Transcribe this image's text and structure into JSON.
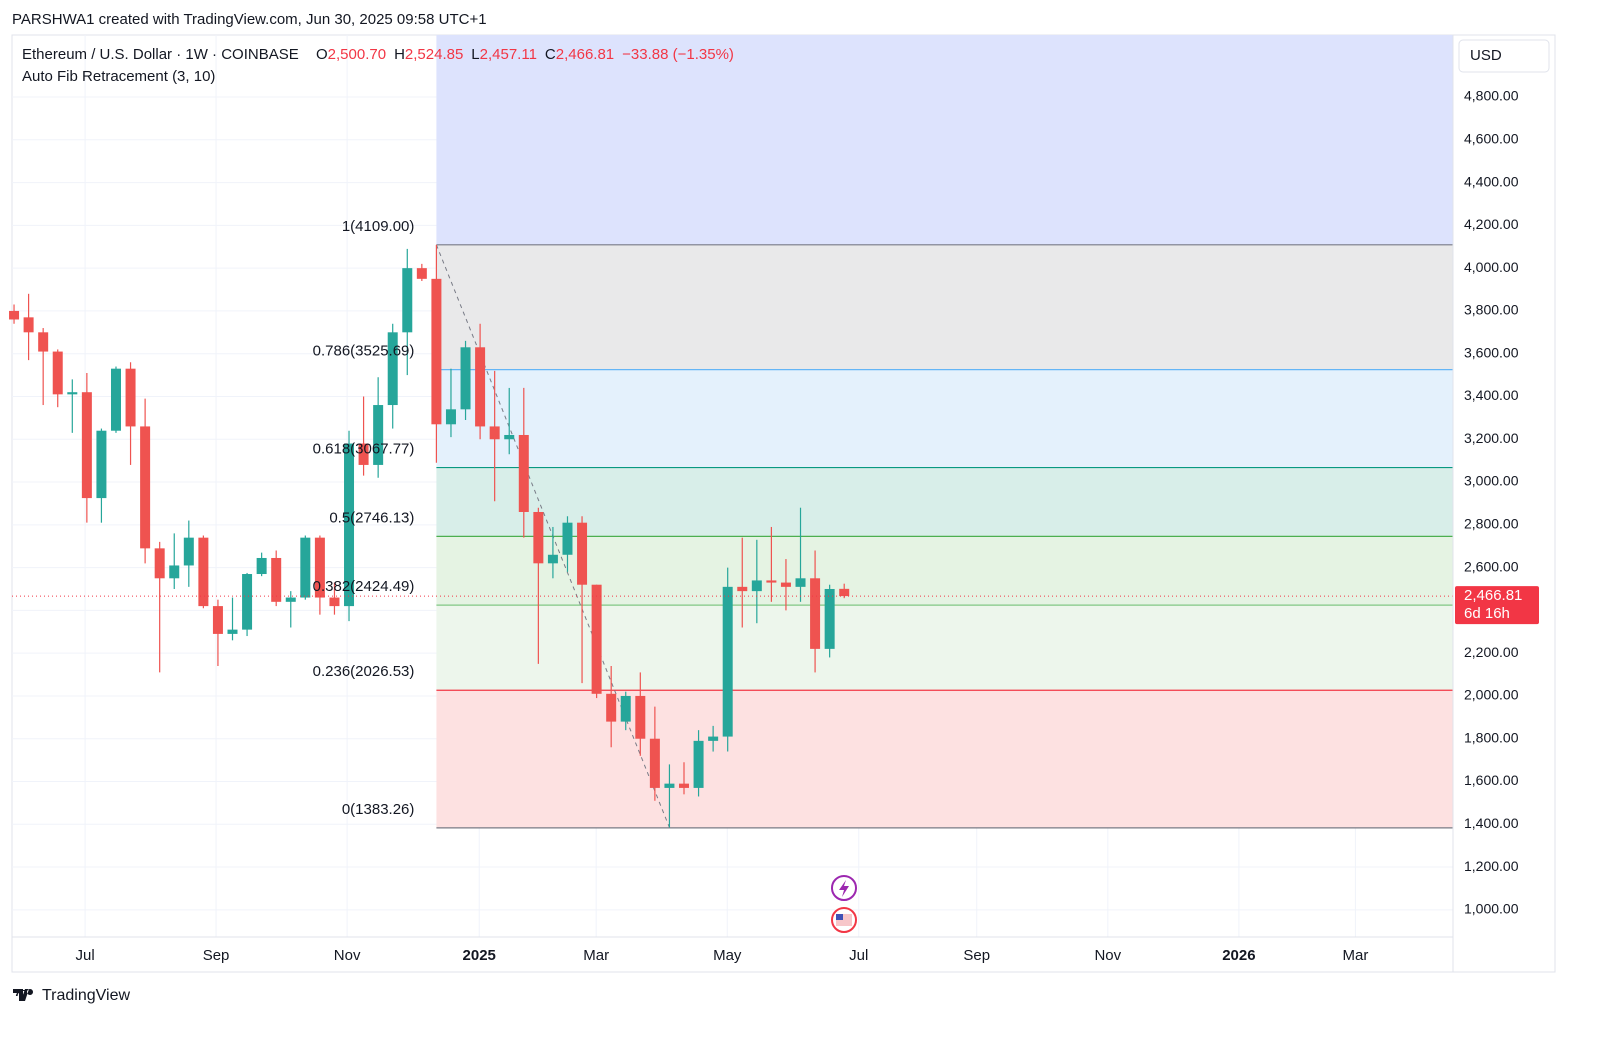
{
  "header": {
    "credit": "PARSHWA1 created with TradingView.com, Jun 30, 2025 09:58 UTC+1",
    "symbol": "Ethereum / U.S. Dollar · 1W · COINBASE",
    "ohlc": [
      {
        "key": "O",
        "text": "2,500.70"
      },
      {
        "key": "H",
        "text": "2,524.85"
      },
      {
        "key": "L",
        "text": "2,457.11"
      },
      {
        "key": "C",
        "text": "2,466.81"
      }
    ],
    "change": "−33.88 (−1.35%)",
    "indicator": "Auto Fib Retracement (3, 10)",
    "currency": "USD",
    "last_price": "2,466.81",
    "countdown": "6d 16h",
    "brand": "TradingView"
  },
  "chart_data": {
    "type": "candlestick",
    "up_color": "#26a69a",
    "down_color": "#ef5350",
    "candles": [
      [
        3800,
        3830,
        3740,
        3760
      ],
      [
        3770,
        3880,
        3570,
        3700
      ],
      [
        3700,
        3720,
        3360,
        3610
      ],
      [
        3610,
        3620,
        3350,
        3410
      ],
      [
        3410,
        3480,
        3230,
        3420
      ],
      [
        3420,
        3510,
        2810,
        2925
      ],
      [
        2925,
        3250,
        2810,
        3240
      ],
      [
        3240,
        3540,
        3230,
        3530
      ],
      [
        3530,
        3560,
        3080,
        3260
      ],
      [
        3260,
        3390,
        2620,
        2690
      ],
      [
        2690,
        2720,
        2110,
        2550
      ],
      [
        2550,
        2760,
        2500,
        2610
      ],
      [
        2610,
        2820,
        2510,
        2740
      ],
      [
        2740,
        2750,
        2410,
        2420
      ],
      [
        2420,
        2450,
        2140,
        2290
      ],
      [
        2290,
        2460,
        2260,
        2310
      ],
      [
        2310,
        2575,
        2280,
        2570
      ],
      [
        2570,
        2670,
        2560,
        2645
      ],
      [
        2645,
        2680,
        2420,
        2440
      ],
      [
        2440,
        2490,
        2320,
        2460
      ],
      [
        2460,
        2750,
        2450,
        2740
      ],
      [
        2740,
        2750,
        2380,
        2460
      ],
      [
        2460,
        2530,
        2380,
        2420
      ],
      [
        2420,
        3240,
        2350,
        3180
      ],
      [
        3180,
        3400,
        3030,
        3080
      ],
      [
        3080,
        3490,
        3020,
        3360
      ],
      [
        3360,
        3740,
        3250,
        3700
      ],
      [
        3700,
        4090,
        3500,
        4000
      ],
      [
        4000,
        4020,
        3940,
        3950
      ],
      [
        3950,
        4109,
        3090,
        3270
      ],
      [
        3270,
        3530,
        3210,
        3340
      ],
      [
        3340,
        3660,
        3290,
        3630
      ],
      [
        3630,
        3740,
        3200,
        3260
      ],
      [
        3260,
        3520,
        2910,
        3200
      ],
      [
        3200,
        3440,
        3130,
        3220
      ],
      [
        3220,
        3440,
        2740,
        2860
      ],
      [
        2860,
        2880,
        2150,
        2620
      ],
      [
        2620,
        2790,
        2550,
        2660
      ],
      [
        2660,
        2840,
        2580,
        2810
      ],
      [
        2810,
        2840,
        2060,
        2520
      ],
      [
        2520,
        2520,
        1990,
        2010
      ],
      [
        2010,
        2140,
        1760,
        1880
      ],
      [
        1880,
        2020,
        1840,
        2000
      ],
      [
        2000,
        2110,
        1720,
        1800
      ],
      [
        1800,
        1950,
        1510,
        1570
      ],
      [
        1570,
        1680,
        1385,
        1590
      ],
      [
        1590,
        1690,
        1540,
        1570
      ],
      [
        1570,
        1840,
        1530,
        1790
      ],
      [
        1790,
        1860,
        1740,
        1810
      ],
      [
        1810,
        2600,
        1740,
        2510
      ],
      [
        2510,
        2740,
        2320,
        2490
      ],
      [
        2490,
        2730,
        2340,
        2540
      ],
      [
        2540,
        2790,
        2440,
        2530
      ],
      [
        2530,
        2640,
        2400,
        2510
      ],
      [
        2510,
        2880,
        2440,
        2550
      ],
      [
        2550,
        2680,
        2110,
        2220
      ],
      [
        2220,
        2520,
        2180,
        2500
      ],
      [
        2500.7,
        2524.85,
        2457.11,
        2466.81
      ]
    ],
    "xlim": [
      -0.14,
      98.8
    ],
    "xticks": [
      {
        "value": 4.88,
        "label": "Jul"
      },
      {
        "value": 13.87,
        "label": "Sep"
      },
      {
        "value": 22.87,
        "label": "Nov"
      },
      {
        "value": 31.94,
        "label": "2025"
      },
      {
        "value": 39.97,
        "label": "Mar"
      },
      {
        "value": 48.97,
        "label": "May"
      },
      {
        "value": 58.0,
        "label": "Jul"
      },
      {
        "value": 66.1,
        "label": "Sep"
      },
      {
        "value": 75.1,
        "label": "Nov"
      },
      {
        "value": 84.1,
        "label": "2026"
      },
      {
        "value": 92.1,
        "label": "Mar"
      }
    ],
    "ylim": [
      873,
      5090
    ],
    "yticks": [
      {
        "value": 1000,
        "label": "1,000.00"
      },
      {
        "value": 1200,
        "label": "1,200.00"
      },
      {
        "value": 1400,
        "label": "1,400.00"
      },
      {
        "value": 1600,
        "label": "1,600.00"
      },
      {
        "value": 1800,
        "label": "1,800.00"
      },
      {
        "value": 2000,
        "label": "2,000.00"
      },
      {
        "value": 2200,
        "label": "2,200.00"
      },
      {
        "value": 2400,
        "label": "2,400.00"
      },
      {
        "value": 2600,
        "label": "2,600.00"
      },
      {
        "value": 2800,
        "label": "2,800.00"
      },
      {
        "value": 3000,
        "label": "3,000.00"
      },
      {
        "value": 3200,
        "label": "3,200.00"
      },
      {
        "value": 3400,
        "label": "3,400.00"
      },
      {
        "value": 3600,
        "label": "3,600.00"
      },
      {
        "value": 3800,
        "label": "3,800.00"
      },
      {
        "value": 4000,
        "label": "4,000.00"
      },
      {
        "value": 4200,
        "label": "4,200.00"
      },
      {
        "value": 4400,
        "label": "4,400.00"
      },
      {
        "value": 4600,
        "label": "4,600.00"
      },
      {
        "value": 4800,
        "label": "4,800.00"
      }
    ],
    "grid": true,
    "fib": {
      "start_index": 29,
      "end_index": 45,
      "top_color": "#dde3fd",
      "levels": [
        {
          "value": 4109.0,
          "label": "1(4109.00)",
          "color": "#787b86",
          "fill": "#e9e9ea"
        },
        {
          "value": 3525.69,
          "label": "0.786(3525.69)",
          "color": "#64b5f6",
          "fill": "#e4f1fc"
        },
        {
          "value": 3067.77,
          "label": "0.618(3067.77)",
          "color": "#089981",
          "fill": "#d8eee9"
        },
        {
          "value": 2746.13,
          "label": "0.5(2746.13)",
          "color": "#4caf50",
          "fill": "#e5f3e3"
        },
        {
          "value": 2424.49,
          "label": "0.382(2424.49)",
          "color": "#81c784",
          "fill": "#edf6ec"
        },
        {
          "value": 2026.53,
          "label": "0.236(2026.53)",
          "color": "#f23645",
          "fill": "#fde1e1"
        },
        {
          "value": 1383.26,
          "label": "0(1383.26)",
          "color": "#787b86",
          "fill": "none"
        }
      ]
    },
    "last_close_color": "#f23645"
  }
}
